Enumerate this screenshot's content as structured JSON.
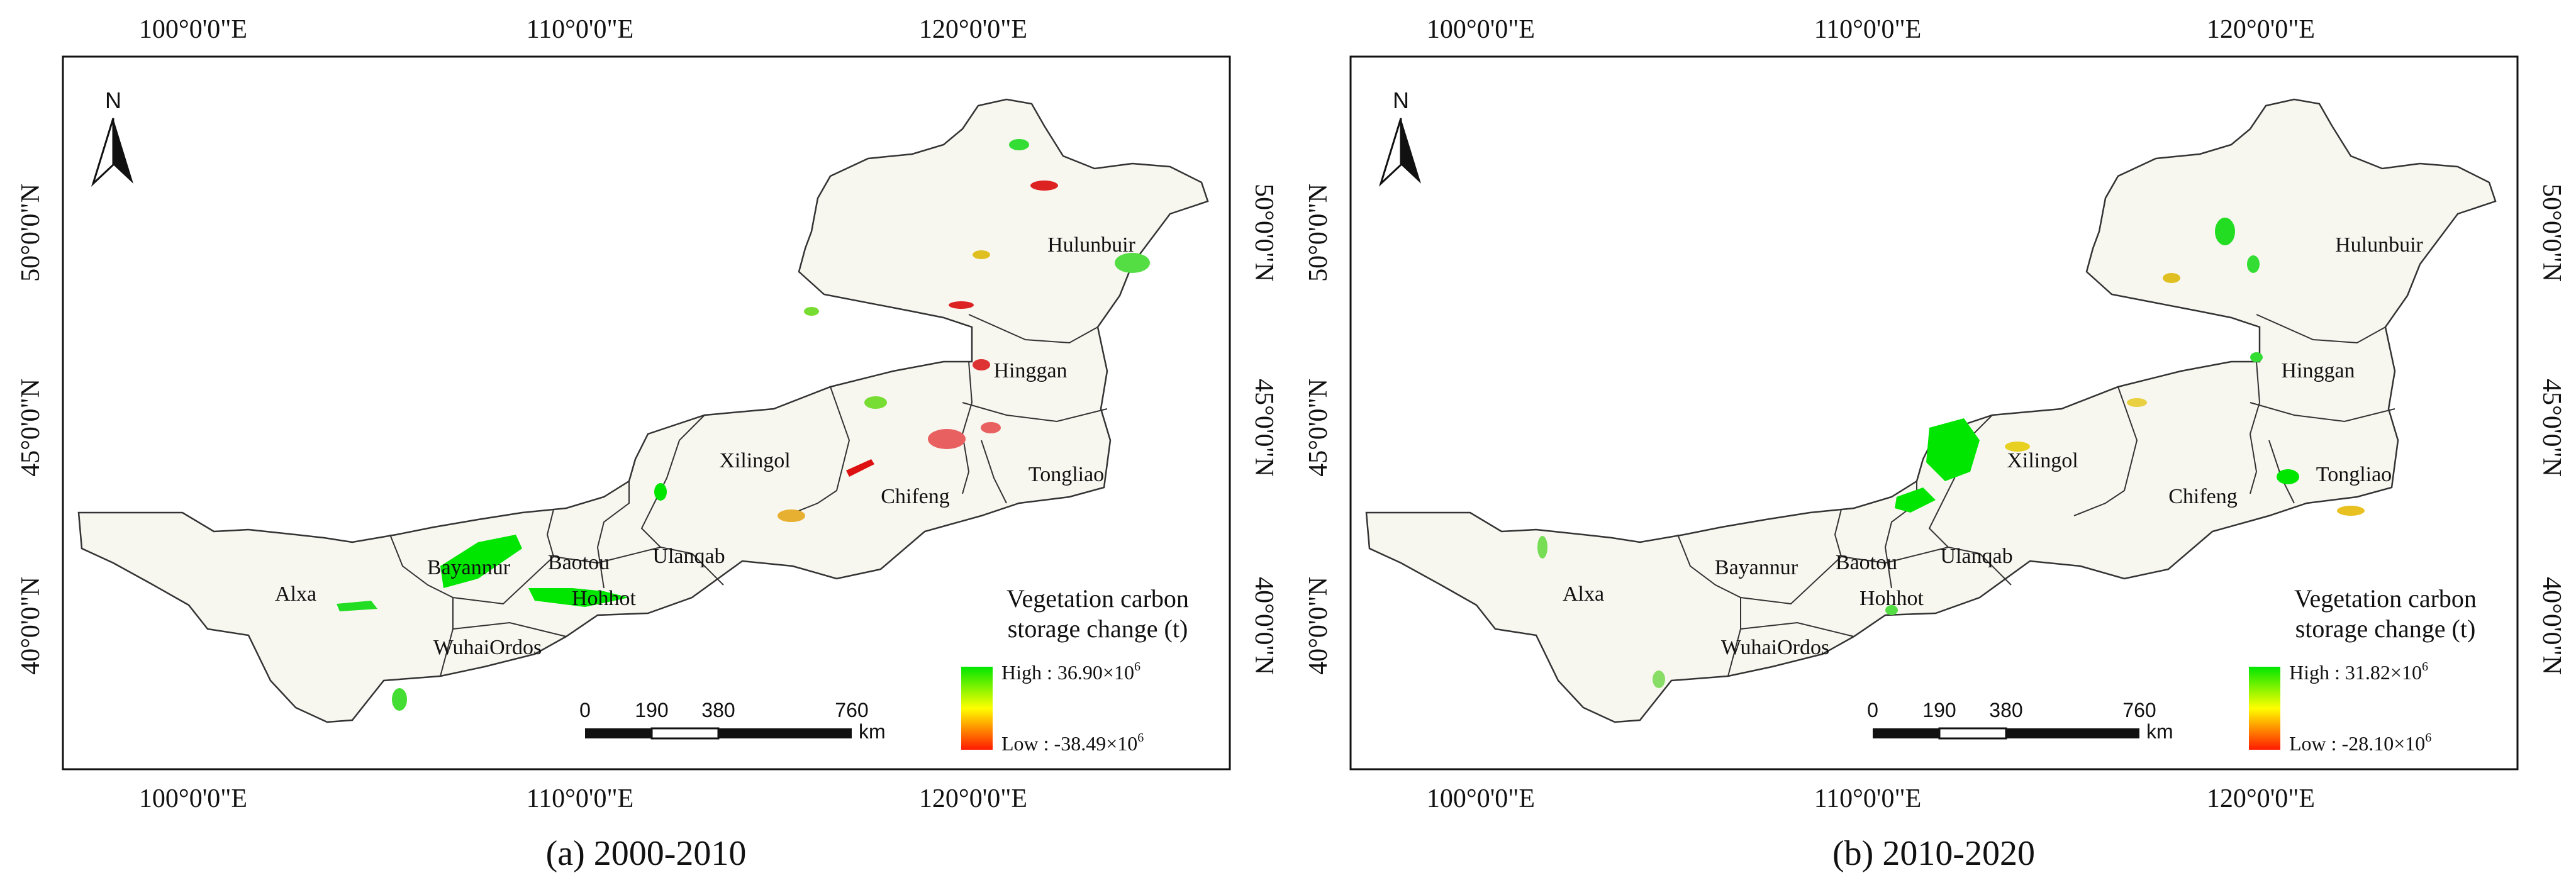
{
  "panels": [
    {
      "caption": "(a) 2000-2010",
      "legend_title_1": "Vegetation carbon",
      "legend_title_2": "storage change (t)",
      "legend_high": "High : 36.90×10",
      "legend_low": "Low : -38.49×10",
      "exponent": "6"
    },
    {
      "caption": "(b) 2010-2020",
      "legend_title_1": "Vegetation carbon",
      "legend_title_2": "storage change (t)",
      "legend_high": "High : 31.82×10",
      "legend_low": "Low : -28.10×10",
      "exponent": "6"
    }
  ],
  "longitude_labels": [
    "100°0'0\"E",
    "110°0'0\"E",
    "120°0'0\"E"
  ],
  "latitude_labels": [
    "50°0'0\"N",
    "45°0'0\"N",
    "40°0'0\"N"
  ],
  "north_label": "N",
  "scale_ticks": [
    "0",
    "190",
    "380",
    "760"
  ],
  "scale_unit": "km",
  "regions": [
    "Hulunbuir",
    "Hinggan",
    "Xilingol",
    "Tongliao",
    "Chifeng",
    "Ulanqab",
    "Baotou",
    "Bayannur",
    "Hohhot",
    "Alxa",
    "WuhaiOrdos"
  ],
  "colors": {
    "high": "#00e600",
    "mid": "#ffff00",
    "low": "#ff1a00",
    "boundary": "#333333",
    "land": "#f7f6ef"
  }
}
